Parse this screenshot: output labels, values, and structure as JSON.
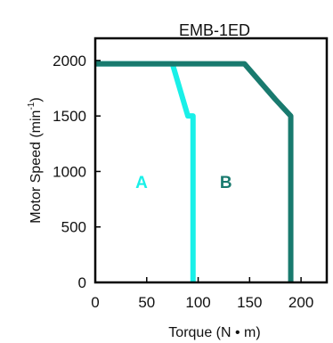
{
  "chart_data": {
    "type": "line",
    "title": "EMB-1ED",
    "xlabel": "Torque (N • m)",
    "ylabel": "Motor  Speed (min",
    "ylabel_superscript": "-1",
    "ylabel_close": ")",
    "xlim": [
      0,
      225
    ],
    "ylim": [
      0,
      2200
    ],
    "xticks": [
      0,
      50,
      100,
      150,
      200
    ],
    "yticks": [
      0,
      500,
      1000,
      1500,
      2000
    ],
    "grid": false,
    "series": [
      {
        "name": "A",
        "color": "#19f0e8",
        "x": [
          0,
          75,
          90,
          95,
          95
        ],
        "y": [
          1970,
          1970,
          1500,
          1500,
          0
        ]
      },
      {
        "name": "B",
        "color": "#197a6e",
        "x": [
          0,
          145,
          175,
          190,
          190
        ],
        "y": [
          1970,
          1970,
          1650,
          1500,
          0
        ]
      }
    ],
    "region_labels": [
      {
        "text": "A",
        "x": 45,
        "y": 850,
        "color": "#19f0e8"
      },
      {
        "text": "B",
        "x": 127,
        "y": 850,
        "color": "#197a6e"
      }
    ]
  }
}
